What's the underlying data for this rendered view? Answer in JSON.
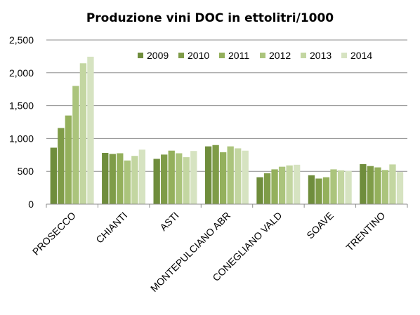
{
  "chart_data": {
    "type": "bar",
    "title": "Produzione vini DOC in ettolitri/1000",
    "xlabel": "",
    "ylabel": "",
    "ylim": [
      0,
      2500
    ],
    "yticks": [
      "0",
      "500",
      "1,000",
      "1,500",
      "2,000",
      "2,500"
    ],
    "grid": true,
    "legend_position": "top-right",
    "categories": [
      "PROSECCO",
      "CHIANTI",
      "ASTI",
      "MONTEPULCIANO ABR",
      "CONEGLIANO VALD",
      "SOAVE",
      "TRENTINO"
    ],
    "series": [
      {
        "name": "2009",
        "color": "#6f8d3c",
        "values": [
          860,
          780,
          690,
          880,
          410,
          440,
          610
        ]
      },
      {
        "name": "2010",
        "color": "#7f9c48",
        "values": [
          1160,
          765,
          755,
          900,
          470,
          390,
          580
        ]
      },
      {
        "name": "2011",
        "color": "#94b05c",
        "values": [
          1350,
          775,
          815,
          790,
          530,
          410,
          560
        ]
      },
      {
        "name": "2012",
        "color": "#abc47c",
        "values": [
          1800,
          665,
          775,
          880,
          570,
          530,
          520
        ]
      },
      {
        "name": "2013",
        "color": "#c3d6a1",
        "values": [
          2145,
          735,
          715,
          850,
          590,
          515,
          605
        ]
      },
      {
        "name": "2014",
        "color": "#d6e3c1",
        "values": [
          2245,
          830,
          810,
          815,
          600,
          505,
          490
        ]
      }
    ]
  }
}
